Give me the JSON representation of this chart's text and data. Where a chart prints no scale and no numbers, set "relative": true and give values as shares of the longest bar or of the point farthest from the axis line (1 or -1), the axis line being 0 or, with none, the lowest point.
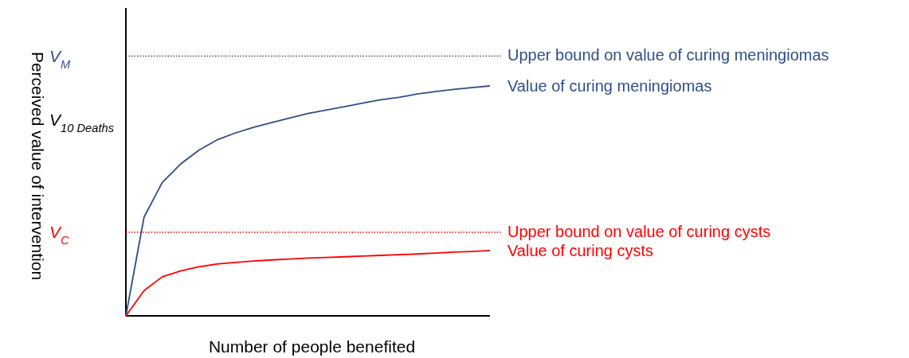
{
  "chart_data": {
    "type": "line",
    "relative": true,
    "xlabel": "Number of people benefited",
    "ylabel": "Perceived value of intervention",
    "legend": false,
    "marker": "none",
    "categories": [
      null,
      null,
      null,
      null,
      null,
      null,
      null,
      null,
      null,
      null,
      null,
      null,
      null,
      null,
      null,
      null,
      null,
      null,
      null,
      null,
      null
    ],
    "series": [
      {
        "name": "Value of curing meningiomas",
        "color": "#2e4f85",
        "values": [
          0,
          0.43,
          0.58,
          0.66,
          0.72,
          0.765,
          0.795,
          0.82,
          0.84,
          0.86,
          0.88,
          0.895,
          0.91,
          0.925,
          0.94,
          0.95,
          0.965,
          0.975,
          0.985,
          0.993,
          1
        ]
      },
      {
        "name": "Value of curing cysts",
        "color": "#ff0000",
        "values": [
          0,
          0.11,
          0.17,
          0.195,
          0.213,
          0.225,
          0.232,
          0.238,
          0.243,
          0.247,
          0.251,
          0.254,
          0.257,
          0.26,
          0.263,
          0.266,
          0.269,
          0.273,
          0.277,
          0.28,
          0.284
        ]
      }
    ],
    "ref_lines": [
      {
        "axis": "y",
        "value": 1.13,
        "label": "Upper bound on value of curing meningiomas",
        "color": "#2e4f85",
        "line_style": "dotted"
      },
      {
        "axis": "y",
        "value": 0.363,
        "label": "Upper bound on value of curing cysts",
        "color": "#ff0000",
        "line_style": "dotted"
      }
    ],
    "annotations": [
      "V$_{M}$",
      "V$_{10 Deaths}$",
      "V$_{C}$"
    ]
  }
}
